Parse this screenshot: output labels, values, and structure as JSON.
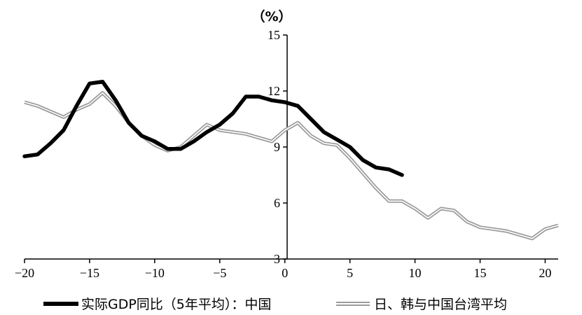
{
  "chart_data": {
    "type": "line",
    "unit_label": "（%）",
    "xlim": [
      -20,
      21
    ],
    "ylim": [
      3,
      15
    ],
    "x_ticks": [
      -20,
      -15,
      -10,
      -5,
      0,
      5,
      10,
      15,
      20
    ],
    "x_tick_labels": [
      "−20",
      "−15",
      "−10",
      "−5",
      "0",
      "5",
      "10",
      "15",
      "20"
    ],
    "y_ticks": [
      3,
      6,
      9,
      12,
      15
    ],
    "y_tick_labels": [
      "3",
      "6",
      "9",
      "12",
      "15"
    ],
    "grid": false,
    "legend_position": "bottom",
    "series": [
      {
        "name": "实际GDP同比（5年平均）：中国",
        "color": "#000000",
        "style": "thick-solid",
        "points": [
          [
            -20,
            8.5
          ],
          [
            -19,
            8.6
          ],
          [
            -18,
            9.2
          ],
          [
            -17,
            9.9
          ],
          [
            -16,
            11.2
          ],
          [
            -15,
            12.4
          ],
          [
            -14,
            12.5
          ],
          [
            -13,
            11.5
          ],
          [
            -12,
            10.3
          ],
          [
            -11,
            9.6
          ],
          [
            -10,
            9.3
          ],
          [
            -9,
            8.9
          ],
          [
            -8,
            8.9
          ],
          [
            -7,
            9.3
          ],
          [
            -6,
            9.8
          ],
          [
            -5,
            10.2
          ],
          [
            -4,
            10.8
          ],
          [
            -3,
            11.7
          ],
          [
            -2,
            11.7
          ],
          [
            -1,
            11.5
          ],
          [
            0,
            11.4
          ],
          [
            1,
            11.2
          ],
          [
            2,
            10.5
          ],
          [
            3,
            9.8
          ],
          [
            4,
            9.4
          ],
          [
            5,
            9.0
          ],
          [
            6,
            8.3
          ],
          [
            7,
            7.9
          ],
          [
            8,
            7.8
          ],
          [
            9,
            7.5
          ]
        ]
      },
      {
        "name": "日、韩与中国台湾平均",
        "color": "#9a9a9a",
        "style": "double-gray",
        "points": [
          [
            -20,
            11.4
          ],
          [
            -19,
            11.2
          ],
          [
            -18,
            10.9
          ],
          [
            -17,
            10.6
          ],
          [
            -16,
            11.0
          ],
          [
            -15,
            11.3
          ],
          [
            -14,
            11.9
          ],
          [
            -13,
            11.2
          ],
          [
            -12,
            10.3
          ],
          [
            -11,
            9.6
          ],
          [
            -10,
            9.1
          ],
          [
            -9,
            8.8
          ],
          [
            -8,
            9.0
          ],
          [
            -7,
            9.6
          ],
          [
            -6,
            10.2
          ],
          [
            -5,
            9.9
          ],
          [
            -4,
            9.8
          ],
          [
            -3,
            9.7
          ],
          [
            -2,
            9.5
          ],
          [
            -1,
            9.3
          ],
          [
            0,
            9.9
          ],
          [
            1,
            10.3
          ],
          [
            2,
            9.6
          ],
          [
            3,
            9.2
          ],
          [
            4,
            9.1
          ],
          [
            5,
            8.4
          ],
          [
            6,
            7.6
          ],
          [
            7,
            6.8
          ],
          [
            8,
            6.1
          ],
          [
            9,
            6.1
          ],
          [
            10,
            5.7
          ],
          [
            11,
            5.2
          ],
          [
            12,
            5.7
          ],
          [
            13,
            5.6
          ],
          [
            14,
            5.0
          ],
          [
            15,
            4.7
          ],
          [
            16,
            4.6
          ],
          [
            17,
            4.5
          ],
          [
            18,
            4.3
          ],
          [
            19,
            4.1
          ],
          [
            20,
            4.6
          ],
          [
            21,
            4.8
          ]
        ]
      }
    ]
  }
}
